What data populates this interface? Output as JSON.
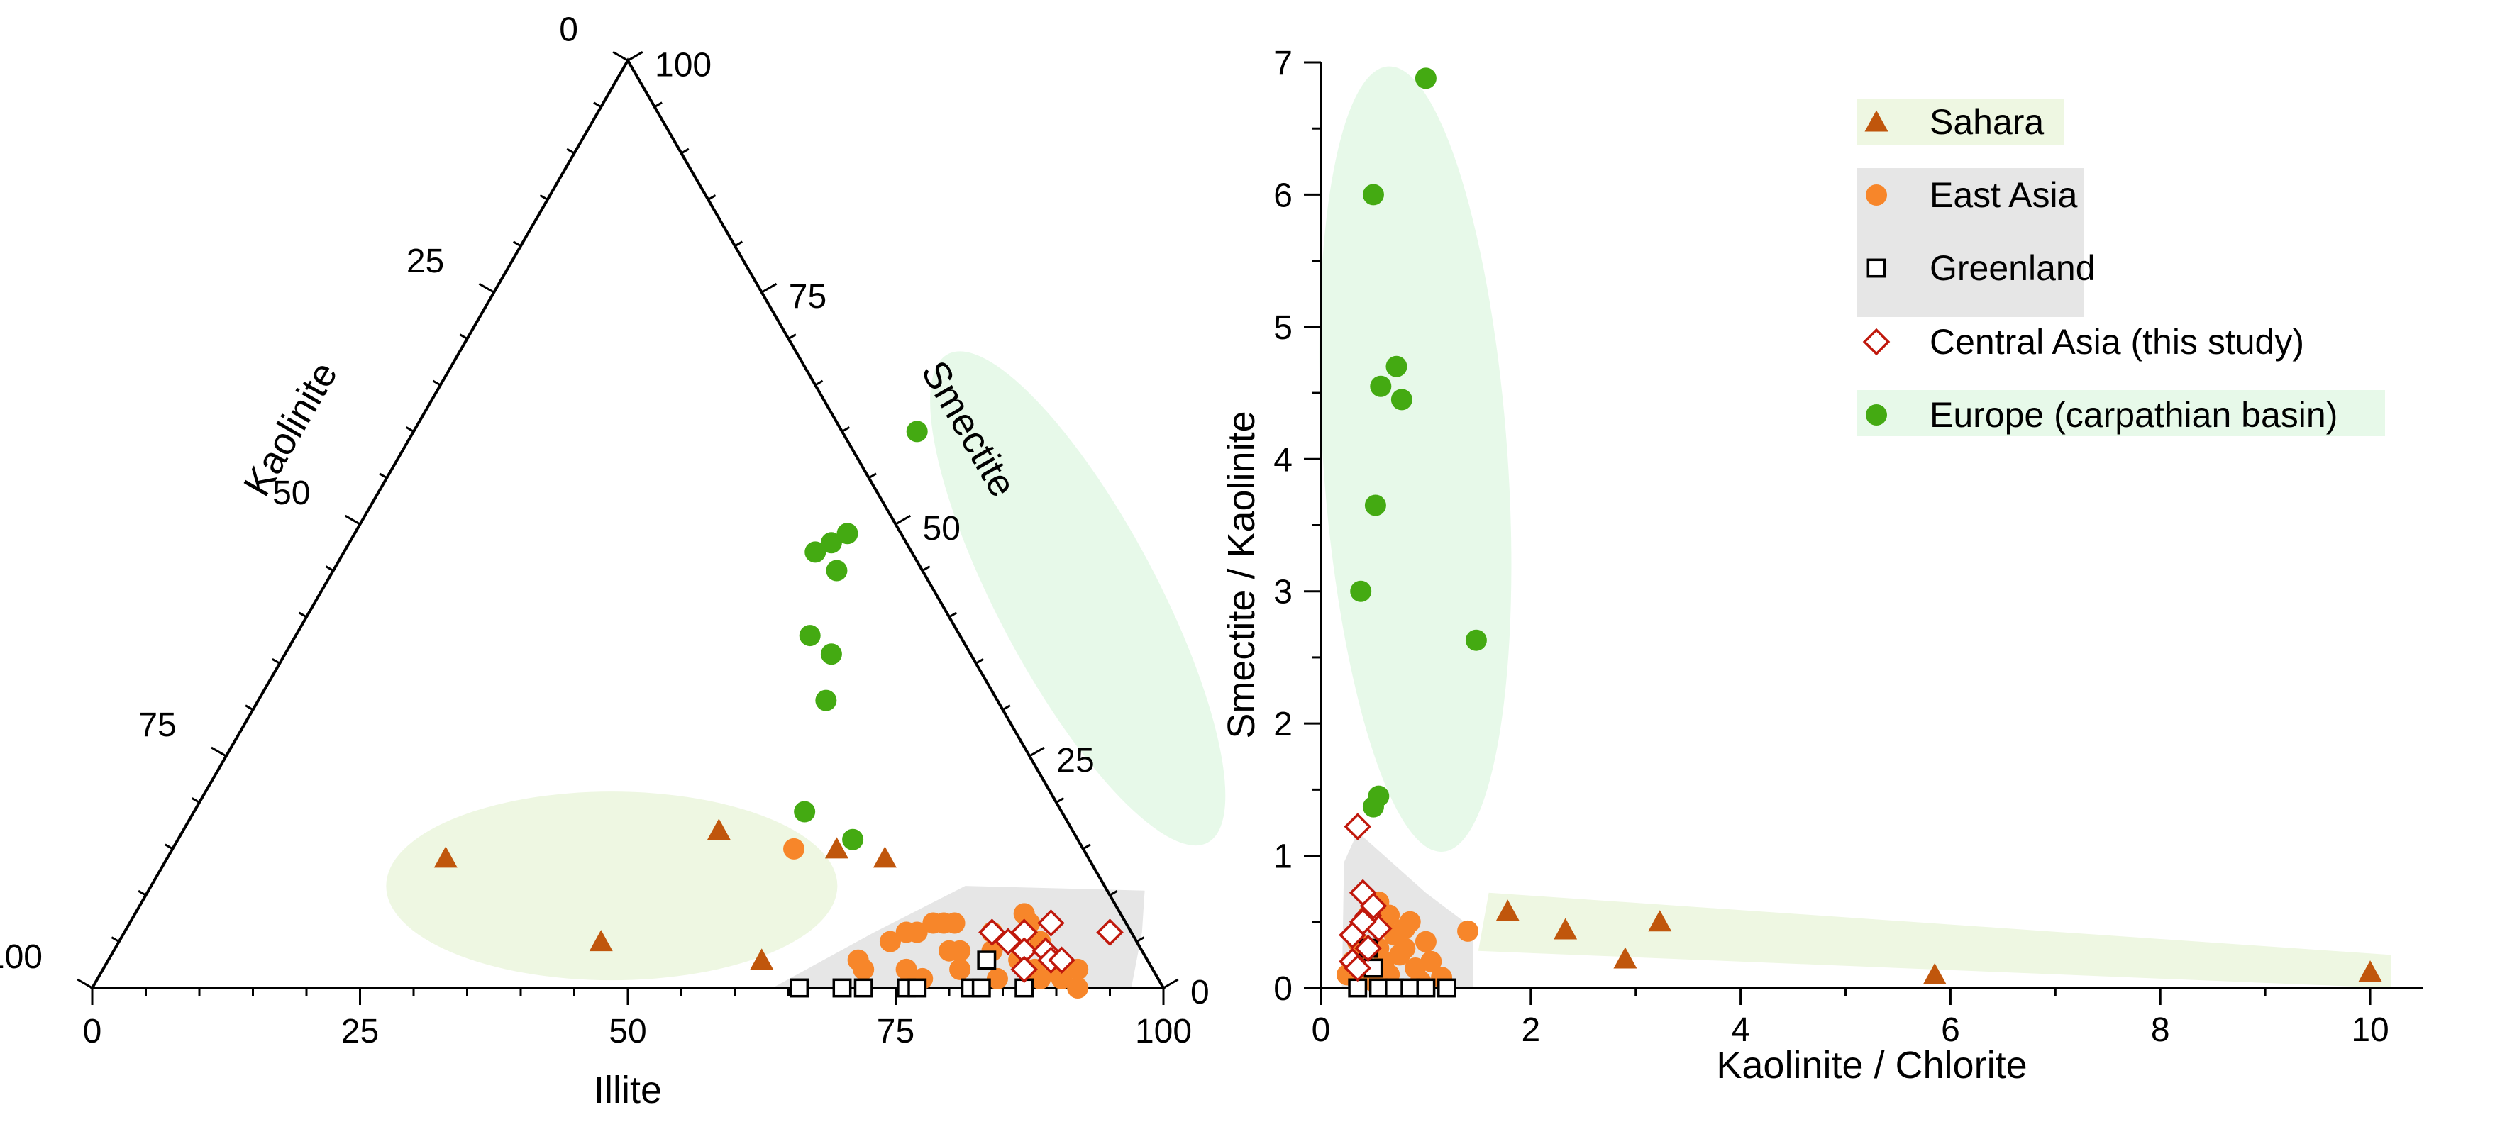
{
  "chart_data": [
    {
      "type": "ternary",
      "axes": {
        "bottom": {
          "label": "Illite",
          "ticks": [
            "0",
            "25",
            "50",
            "75",
            "100"
          ]
        },
        "left": {
          "label": "Kaolinite",
          "ticks": [
            "0",
            "25",
            "50",
            "75",
            "100"
          ]
        },
        "right": {
          "label": "Smectite",
          "ticks": [
            "0",
            "25",
            "50",
            "75",
            "100"
          ]
        }
      },
      "series": [
        {
          "name": "Sahara",
          "marker": "triangle",
          "points": [
            {
              "illite": 26,
              "smectite": 14
            },
            {
              "illite": 50,
              "smectite": 17
            },
            {
              "illite": 45,
              "smectite": 5
            },
            {
              "illite": 62,
              "smectite": 15
            },
            {
              "illite": 67,
              "smectite": 14
            },
            {
              "illite": 61,
              "smectite": 3
            }
          ]
        },
        {
          "name": "East Asia",
          "marker": "circle",
          "points": [
            {
              "illite": 58,
              "smectite": 15
            },
            {
              "illite": 70,
              "smectite": 3
            },
            {
              "illite": 71,
              "smectite": 2
            },
            {
              "illite": 72,
              "smectite": 5
            },
            {
              "illite": 73,
              "smectite": 6
            },
            {
              "illite": 74,
              "smectite": 6
            },
            {
              "illite": 75,
              "smectite": 7
            },
            {
              "illite": 76,
              "smectite": 7
            },
            {
              "illite": 77,
              "smectite": 7
            },
            {
              "illite": 78,
              "smectite": 4
            },
            {
              "illite": 79,
              "smectite": 4
            },
            {
              "illite": 80,
              "smectite": 2
            },
            {
              "illite": 82,
              "smectite": 4
            },
            {
              "illite": 83,
              "smectite": 8
            },
            {
              "illite": 84,
              "smectite": 1
            },
            {
              "illite": 85,
              "smectite": 3
            },
            {
              "illite": 86,
              "smectite": 5
            },
            {
              "illite": 87,
              "smectite": 2
            },
            {
              "illite": 88,
              "smectite": 1
            },
            {
              "illite": 90,
              "smectite": 1
            },
            {
              "illite": 91,
              "smectite": 2
            },
            {
              "illite": 92,
              "smectite": 0
            },
            {
              "illite": 75,
              "smectite": 2
            },
            {
              "illite": 77,
              "smectite": 1
            },
            {
              "illite": 81,
              "smectite": 6
            },
            {
              "illite": 84,
              "smectite": 7
            },
            {
              "illite": 89,
              "smectite": 2
            }
          ]
        },
        {
          "name": "Greenland",
          "marker": "square",
          "points": [
            {
              "illite": 66,
              "smectite": 0
            },
            {
              "illite": 70,
              "smectite": 0
            },
            {
              "illite": 72,
              "smectite": 0
            },
            {
              "illite": 76,
              "smectite": 0
            },
            {
              "illite": 77,
              "smectite": 0
            },
            {
              "illite": 82,
              "smectite": 0
            },
            {
              "illite": 83,
              "smectite": 0
            },
            {
              "illite": 87,
              "smectite": 0
            },
            {
              "illite": 82,
              "smectite": 3
            }
          ]
        },
        {
          "name": "Central Asia (this study)",
          "marker": "diamond",
          "points": [
            {
              "illite": 81,
              "smectite": 6
            },
            {
              "illite": 83,
              "smectite": 5
            },
            {
              "illite": 84,
              "smectite": 6
            },
            {
              "illite": 85,
              "smectite": 4
            },
            {
              "illite": 86,
              "smectite": 2
            },
            {
              "illite": 86,
              "smectite": 7
            },
            {
              "illite": 87,
              "smectite": 4
            },
            {
              "illite": 88,
              "smectite": 3
            },
            {
              "illite": 89,
              "smectite": 3
            },
            {
              "illite": 92,
              "smectite": 6
            }
          ]
        },
        {
          "name": "Europe (carpathian basin)",
          "marker": "circle",
          "points": [
            {
              "illite": 47,
              "smectite": 60
            },
            {
              "illite": 44,
              "smectite": 47
            },
            {
              "illite": 45,
              "smectite": 48
            },
            {
              "illite": 46,
              "smectite": 49
            },
            {
              "illite": 47,
              "smectite": 45
            },
            {
              "illite": 48,
              "smectite": 38
            },
            {
              "illite": 51,
              "smectite": 36
            },
            {
              "illite": 53,
              "smectite": 31
            },
            {
              "illite": 57,
              "smectite": 19
            },
            {
              "illite": 63,
              "smectite": 16
            }
          ]
        }
      ]
    },
    {
      "type": "scatter",
      "xlabel": "Kaolinite / Chlorite",
      "ylabel": "Smectite / Kaolinite",
      "xlim": [
        0,
        10.5
      ],
      "ylim": [
        0,
        7
      ],
      "xticks": [
        0,
        2,
        4,
        6,
        8,
        10
      ],
      "yticks": [
        0,
        1,
        2,
        3,
        4,
        5,
        6,
        7
      ],
      "legend_position": "top-right",
      "series": [
        {
          "name": "Sahara",
          "marker": "triangle",
          "points": [
            [
              1.78,
              0.58
            ],
            [
              2.33,
              0.44
            ],
            [
              2.9,
              0.22
            ],
            [
              3.23,
              0.5
            ],
            [
              5.85,
              0.1
            ],
            [
              10.0,
              0.12
            ]
          ]
        },
        {
          "name": "East Asia",
          "marker": "circle",
          "points": [
            [
              0.25,
              0.1
            ],
            [
              0.3,
              0.2
            ],
            [
              0.35,
              0.35
            ],
            [
              0.4,
              0.25
            ],
            [
              0.45,
              0.15
            ],
            [
              0.5,
              0.05
            ],
            [
              0.55,
              0.3
            ],
            [
              0.6,
              0.2
            ],
            [
              0.65,
              0.1
            ],
            [
              0.7,
              0.4
            ],
            [
              0.75,
              0.25
            ],
            [
              0.8,
              0.45
            ],
            [
              0.85,
              0.5
            ],
            [
              0.9,
              0.15
            ],
            [
              0.95,
              0.05
            ],
            [
              1.0,
              0.35
            ],
            [
              1.05,
              0.2
            ],
            [
              0.45,
              0.55
            ],
            [
              0.55,
              0.65
            ],
            [
              1.15,
              0.08
            ],
            [
              1.4,
              0.43
            ],
            [
              0.65,
              0.55
            ],
            [
              0.35,
              0.05
            ],
            [
              0.8,
              0.3
            ]
          ]
        },
        {
          "name": "Greenland",
          "marker": "square",
          "points": [
            [
              0.35,
              0.0
            ],
            [
              0.45,
              0.3
            ],
            [
              0.5,
              0.15
            ],
            [
              0.55,
              0.0
            ],
            [
              0.7,
              0.0
            ],
            [
              0.85,
              0.0
            ],
            [
              1.0,
              0.0
            ],
            [
              1.2,
              0.0
            ]
          ]
        },
        {
          "name": "Central Asia (this study)",
          "marker": "diamond",
          "points": [
            [
              0.3,
              0.2
            ],
            [
              0.3,
              0.4
            ],
            [
              0.35,
              1.22
            ],
            [
              0.4,
              0.72
            ],
            [
              0.45,
              0.55
            ],
            [
              0.35,
              0.15
            ],
            [
              0.45,
              0.3
            ],
            [
              0.55,
              0.45
            ],
            [
              0.4,
              0.5
            ],
            [
              0.5,
              0.62
            ]
          ]
        },
        {
          "name": "Europe (carpathian basin)",
          "marker": "circle",
          "points": [
            [
              0.5,
              1.37
            ],
            [
              0.55,
              1.45
            ],
            [
              1.0,
              6.88
            ],
            [
              0.5,
              6.0
            ],
            [
              0.72,
              4.7
            ],
            [
              0.57,
              4.55
            ],
            [
              0.77,
              4.45
            ],
            [
              0.52,
              3.65
            ],
            [
              0.38,
              3.0
            ],
            [
              1.48,
              2.63
            ]
          ]
        }
      ]
    }
  ],
  "colors": {
    "sahara": "#c0560c",
    "east_asia": "#f7862a",
    "greenland": "#000000",
    "central_asia": "#c0180c",
    "europe": "#44aa12",
    "halo_green": "#e7f9e9",
    "halo_lime": "#eef7e2",
    "halo_gray": "#e6e6e6"
  }
}
